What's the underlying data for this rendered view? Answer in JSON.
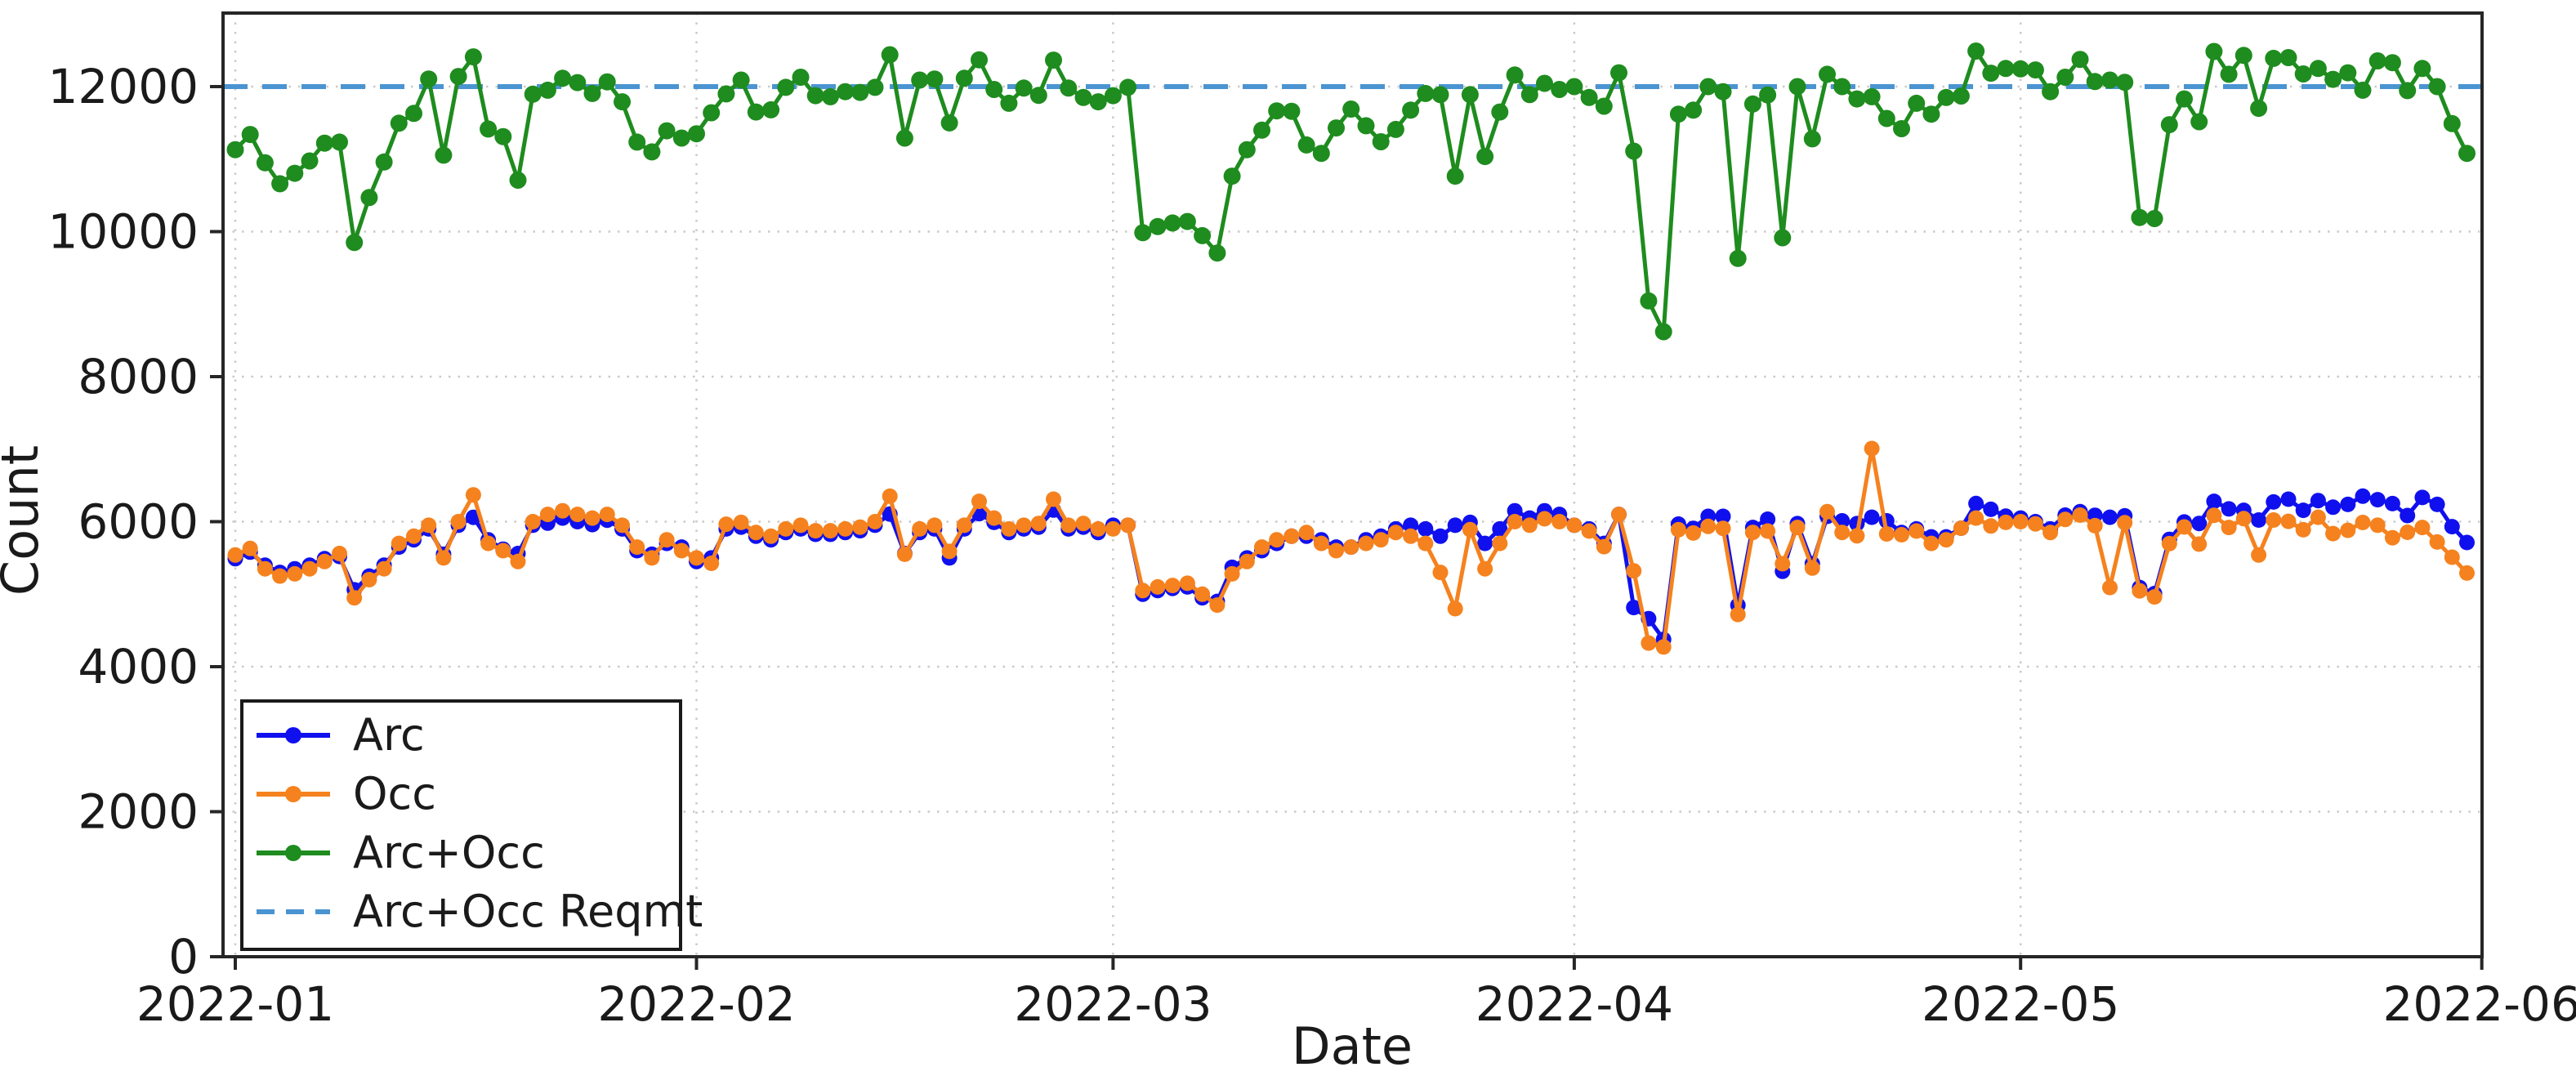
{
  "chart_data": {
    "type": "line",
    "title": "",
    "xlabel": "Date",
    "ylabel": "Count",
    "x_start_date": "2022-01-01",
    "x_end_date": "2022-05-31",
    "x_tick_labels": [
      "2022-01",
      "2022-02",
      "2022-03",
      "2022-04",
      "2022-05",
      "2022-06"
    ],
    "x_tick_day_offsets": [
      0,
      31,
      59,
      90,
      120,
      151
    ],
    "y_ticks": [
      0,
      2000,
      4000,
      6000,
      8000,
      10000,
      12000
    ],
    "ylim": [
      0,
      13030
    ],
    "grid": true,
    "legend_position": "lower-left",
    "background": "#ffffff",
    "text_color": "#1a1a1a",
    "grid_color": "#c9c9c9",
    "spine_color": "#262626",
    "reference_line": {
      "name": "Arc+Occ Reqmt",
      "value": 12000,
      "color": "#4a94d2",
      "style": "dashed"
    },
    "series": [
      {
        "name": "Arc",
        "color": "#1010ee",
        "marker": "circle",
        "values": [
          5490,
          5580,
          5400,
          5300,
          5350,
          5400,
          5490,
          5520,
          5060,
          5250,
          5400,
          5650,
          5750,
          5900,
          5550,
          5950,
          6060,
          5750,
          5620,
          5560,
          5950,
          5980,
          6050,
          6000,
          5960,
          6020,
          5900,
          5600,
          5550,
          5700,
          5650,
          5450,
          5500,
          5900,
          5925,
          5800,
          5750,
          5850,
          5900,
          5825,
          5825,
          5850,
          5875,
          5950,
          6105,
          5560,
          5850,
          5900,
          5500,
          5900,
          6110,
          5990,
          5850,
          5900,
          5925,
          6160,
          5900,
          5925,
          5850,
          5950,
          5950,
          5000,
          5050,
          5080,
          5100,
          4950,
          4900,
          5370,
          5500,
          5600,
          5700,
          5800,
          5800,
          5750,
          5650,
          5650,
          5750,
          5800,
          5900,
          5950,
          5900,
          5800,
          5950,
          5990,
          5700,
          5900,
          6150,
          6050,
          6150,
          6100,
          5950,
          5900,
          5700,
          6100,
          4816,
          4663,
          4376,
          5966,
          5908,
          6073,
          6073,
          4847,
          5920,
          6034,
          5315,
          5973,
          5421,
          6073,
          6011,
          5973,
          6061,
          6011,
          5850,
          5900,
          5790,
          5790,
          5910,
          6250,
          6170,
          6075,
          6050,
          6000,
          5900,
          6090,
          6138,
          6088,
          6061,
          6080,
          5092,
          5008,
          5755,
          5996,
          5975,
          6280,
          6176,
          6157,
          6023,
          6272,
          6310,
          6157,
          6291,
          6199,
          6238,
          6352,
          6303,
          6249,
          6084,
          6333,
          6238,
          5931,
          5713
        ]
      },
      {
        "name": "Occ",
        "color": "#f5821e",
        "marker": "circle",
        "values": [
          5540,
          5630,
          5350,
          5250,
          5280,
          5350,
          5450,
          5560,
          4950,
          5200,
          5350,
          5700,
          5800,
          5950,
          5500,
          6000,
          6370,
          5700,
          5600,
          5450,
          6000,
          6100,
          6150,
          6100,
          6050,
          6100,
          5950,
          5650,
          5500,
          5750,
          5600,
          5500,
          5425,
          5965,
          5990,
          5850,
          5800,
          5900,
          5950,
          5875,
          5875,
          5900,
          5925,
          6000,
          6350,
          5550,
          5900,
          5950,
          5590,
          5950,
          6280,
          6050,
          5900,
          5950,
          5975,
          6310,
          5950,
          5975,
          5900,
          5900,
          5950,
          5050,
          5100,
          5120,
          5150,
          5000,
          4850,
          5280,
          5450,
          5650,
          5750,
          5800,
          5850,
          5700,
          5600,
          5650,
          5700,
          5750,
          5850,
          5800,
          5700,
          5300,
          4800,
          5890,
          5350,
          5700,
          6000,
          5950,
          6040,
          6000,
          5950,
          5870,
          5655,
          6100,
          5322,
          4326,
          4272,
          5889,
          5843,
          5935,
          5908,
          4720,
          5851,
          5870,
          5420,
          5920,
          5360,
          6138,
          5851,
          5805,
          7008,
          5831,
          5820,
          5870,
          5700,
          5750,
          5910,
          6050,
          5940,
          5990,
          6000,
          5970,
          5850,
          6030,
          6090,
          5945,
          5092,
          5985,
          5046,
          4962,
          5697,
          5927,
          5690,
          6088,
          5920,
          6042,
          5540,
          6023,
          6004,
          5888,
          6061,
          5835,
          5881,
          5989,
          5950,
          5778,
          5854,
          5920,
          5720,
          5510,
          5291
        ]
      },
      {
        "name": "Arc+Occ",
        "color": "#1e8c1e",
        "marker": "circle",
        "values": [
          11130,
          11340,
          10950,
          10660,
          10805,
          10975,
          11220,
          11235,
          9850,
          10470,
          10960,
          11495,
          11630,
          12105,
          11055,
          12140,
          12410,
          11415,
          11310,
          10710,
          11895,
          11950,
          12115,
          12055,
          11905,
          12065,
          11790,
          11235,
          11100,
          11390,
          11290,
          11350,
          11640,
          11900,
          12090,
          11650,
          11680,
          11990,
          12130,
          11875,
          11860,
          11930,
          11920,
          11990,
          12440,
          11290,
          12090,
          12105,
          11500,
          12115,
          12370,
          11960,
          11770,
          11980,
          11880,
          12365,
          11980,
          11850,
          11790,
          11875,
          11990,
          9985,
          10070,
          10120,
          10140,
          9945,
          9705,
          10765,
          11130,
          11400,
          11665,
          11660,
          11195,
          11080,
          11430,
          11690,
          11460,
          11240,
          11410,
          11675,
          11905,
          11890,
          10765,
          11890,
          11035,
          11650,
          12160,
          11890,
          12045,
          11960,
          12000,
          11850,
          11730,
          12190,
          11110,
          9045,
          8620,
          11620,
          11675,
          12000,
          11930,
          9630,
          11760,
          11885,
          9915,
          12000,
          11280,
          12170,
          12000,
          11830,
          11860,
          11560,
          11420,
          11770,
          11620,
          11850,
          11870,
          12490,
          12185,
          12250,
          12245,
          12230,
          11930,
          12130,
          12375,
          12070,
          12090,
          12060,
          10195,
          10180,
          11475,
          11830,
          11515,
          12485,
          12170,
          12430,
          11700,
          12390,
          12400,
          12175,
          12250,
          12100,
          12190,
          11950,
          12355,
          12330,
          11945,
          12250,
          12000,
          11490,
          11080
        ]
      }
    ]
  },
  "legend": {
    "items": [
      {
        "label": "Arc",
        "color": "#1010ee",
        "dashed": false,
        "marker": true
      },
      {
        "label": "Occ",
        "color": "#f5821e",
        "dashed": false,
        "marker": true
      },
      {
        "label": "Arc+Occ",
        "color": "#1e8c1e",
        "dashed": false,
        "marker": true
      },
      {
        "label": "Arc+Occ Reqmt",
        "color": "#4a94d2",
        "dashed": true,
        "marker": false
      }
    ]
  }
}
